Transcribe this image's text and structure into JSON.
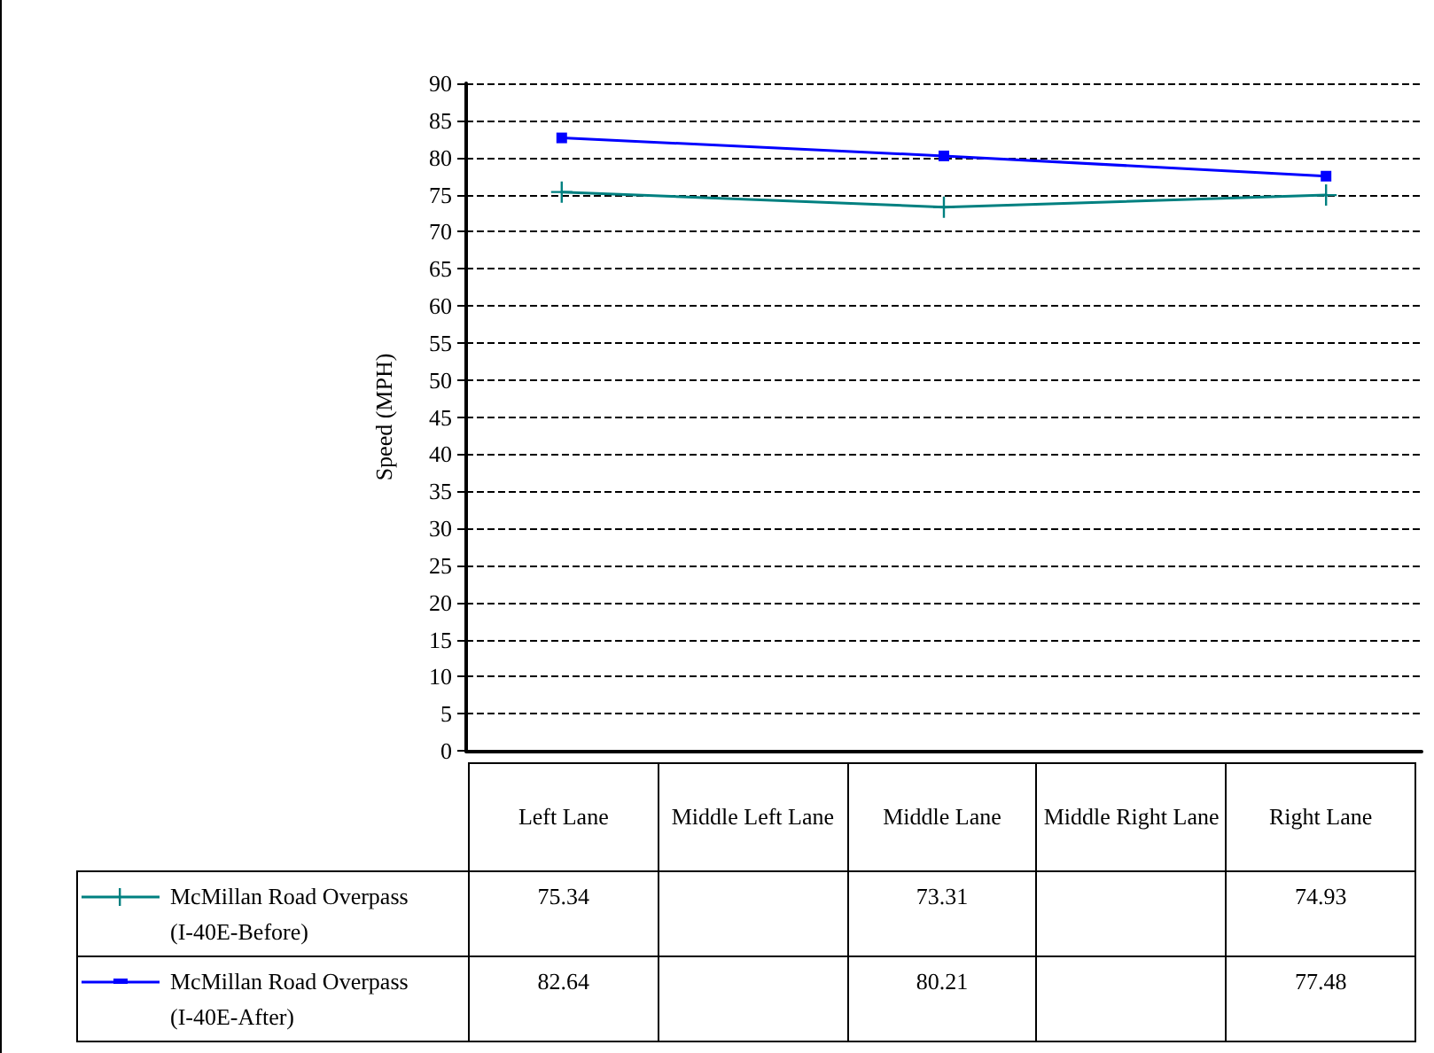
{
  "chart_data": {
    "type": "line",
    "ylabel": "Speed (MPH)",
    "categories": [
      "Left Lane",
      "Middle Left Lane",
      "Middle Lane",
      "Middle Right Lane",
      "Right Lane"
    ],
    "series": [
      {
        "name": "McMillan Road Overpass (I-40E-Before)",
        "color": "#008080",
        "marker": "cross",
        "values": [
          75.34,
          null,
          73.31,
          null,
          74.93
        ]
      },
      {
        "name": "McMillan Road Overpass (I-40E-After)",
        "color": "#0000ff",
        "marker": "square",
        "values": [
          82.64,
          null,
          80.21,
          null,
          77.48
        ]
      }
    ],
    "ylim": [
      0,
      90
    ],
    "yticks": [
      0,
      5,
      10,
      15,
      20,
      25,
      30,
      35,
      40,
      45,
      50,
      55,
      60,
      65,
      70,
      75,
      80,
      85,
      90
    ],
    "grid": "y",
    "legend": "bottom",
    "data_labels": true,
    "line_style": "solid"
  }
}
